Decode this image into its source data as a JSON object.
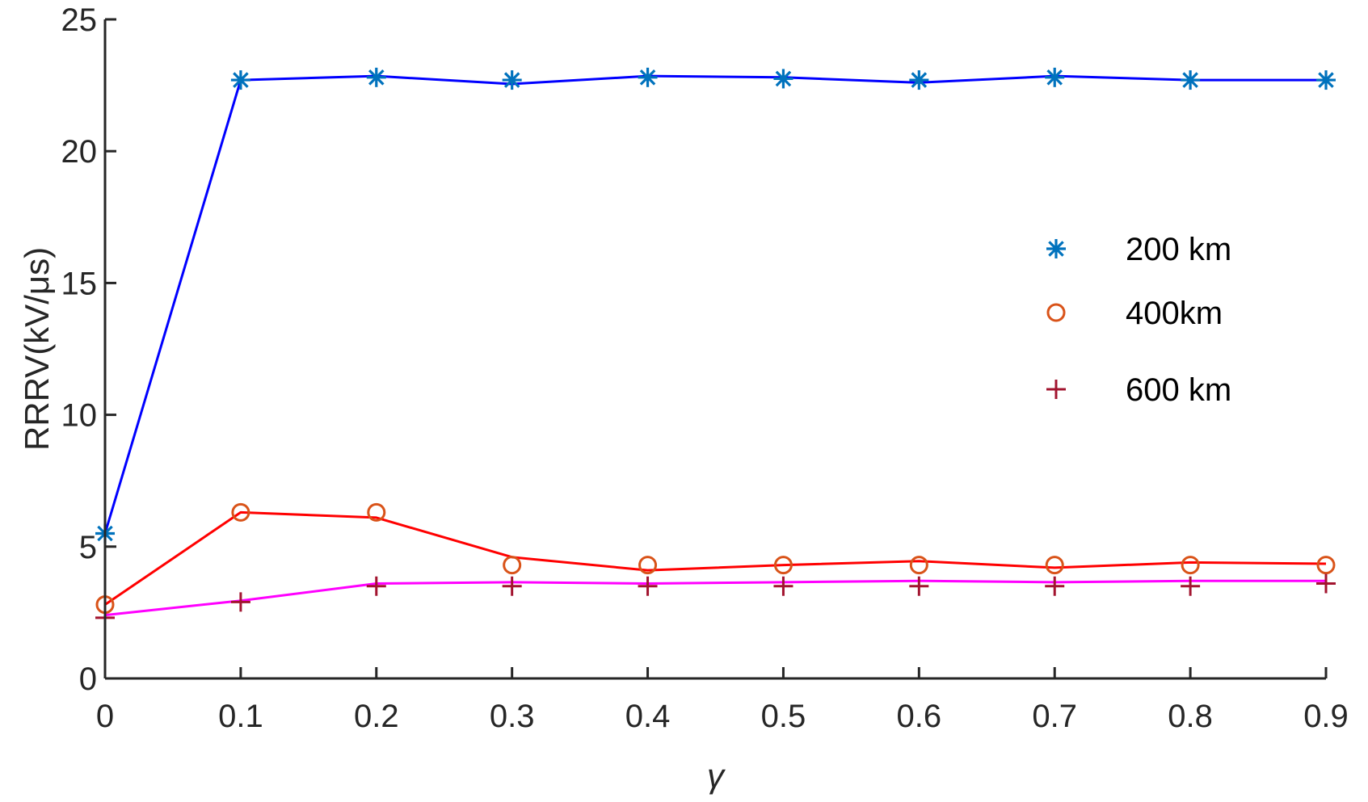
{
  "chart_data": {
    "type": "line",
    "xlabel": "γ",
    "ylabel": "RRRV(kV/μs)",
    "xlim": [
      0,
      0.9
    ],
    "ylim": [
      0,
      25
    ],
    "xticks": [
      0,
      0.1,
      0.2,
      0.3,
      0.4,
      0.5,
      0.6,
      0.7,
      0.8,
      0.9
    ],
    "xtick_labels": [
      "0",
      "0.1",
      "0.2",
      "0.3",
      "0.4",
      "0.5",
      "0.6",
      "0.7",
      "0.8",
      "0.9"
    ],
    "yticks": [
      0,
      5,
      10,
      15,
      20,
      25
    ],
    "ytick_labels": [
      "0",
      "5",
      "10",
      "15",
      "20",
      "25"
    ],
    "grid": false,
    "legend_position": "right",
    "x": [
      0,
      0.1,
      0.2,
      0.3,
      0.4,
      0.5,
      0.6,
      0.7,
      0.8,
      0.9
    ],
    "series": [
      {
        "name": "200 km",
        "marker": "asterisk",
        "marker_color": "#0072bd",
        "line_color": "#0000ff",
        "marker_values": [
          5.5,
          22.7,
          22.8,
          22.7,
          22.8,
          22.75,
          22.7,
          22.8,
          22.7,
          22.7
        ],
        "line_values": [
          5.5,
          22.7,
          22.85,
          22.55,
          22.85,
          22.8,
          22.6,
          22.85,
          22.7,
          22.7
        ]
      },
      {
        "name": "400km",
        "marker": "circle",
        "marker_color": "#d95319",
        "line_color": "#ff0000",
        "marker_values": [
          2.8,
          6.3,
          6.3,
          4.3,
          4.3,
          4.3,
          4.3,
          4.3,
          4.3,
          4.3
        ],
        "line_values": [
          2.8,
          6.3,
          6.1,
          4.6,
          4.1,
          4.3,
          4.45,
          4.2,
          4.4,
          4.35
        ]
      },
      {
        "name": "600 km",
        "marker": "plus",
        "marker_color": "#a2142f",
        "line_color": "#ff00ff",
        "marker_values": [
          2.3,
          2.9,
          3.5,
          3.5,
          3.5,
          3.5,
          3.5,
          3.5,
          3.5,
          3.6
        ],
        "line_values": [
          2.4,
          2.95,
          3.6,
          3.65,
          3.6,
          3.65,
          3.7,
          3.65,
          3.7,
          3.7
        ]
      }
    ]
  }
}
